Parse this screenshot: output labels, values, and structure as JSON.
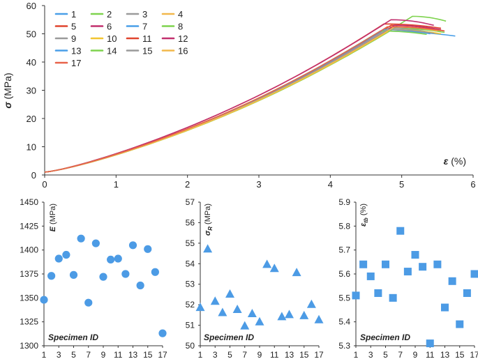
{
  "chart_data": [
    {
      "type": "line",
      "ylabel_symbol": "σ",
      "ylabel_unit": " (MPa)",
      "xlabel_symbol": "ε",
      "xlabel_unit": " (%)",
      "xlim": [
        0,
        6
      ],
      "ylim": [
        0,
        60
      ],
      "xticks": [
        "0",
        "1",
        "2",
        "3",
        "4",
        "5",
        "6"
      ],
      "yticks": [
        "0",
        "10",
        "20",
        "30",
        "40",
        "50",
        "60"
      ],
      "series": [
        {
          "name": "1",
          "color": "#4a9fe8",
          "x_peak": 4.7,
          "peak": 51.0,
          "x_end": 5.75,
          "end": 49.2
        },
        {
          "name": "2",
          "color": "#7ed34e",
          "x_peak": 5.15,
          "peak": 56.2,
          "x_end": 5.62,
          "end": 54.5
        },
        {
          "name": "3",
          "color": "#9a9a9a",
          "x_peak": 4.75,
          "peak": 51.5,
          "x_end": 5.3,
          "end": 50.4
        },
        {
          "name": "4",
          "color": "#f2b84b",
          "x_peak": 4.8,
          "peak": 52.5,
          "x_end": 5.55,
          "end": 51.0
        },
        {
          "name": "5",
          "color": "#e0452e",
          "x_peak": 4.75,
          "peak": 53.5,
          "x_end": 5.55,
          "end": 52.0
        },
        {
          "name": "6",
          "color": "#c2306e",
          "x_peak": 4.85,
          "peak": 55.0,
          "x_end": 5.45,
          "end": 53.0
        },
        {
          "name": "7",
          "color": "#4a9fe8",
          "x_peak": 4.85,
          "peak": 52.0,
          "x_end": 5.4,
          "end": 50.5
        },
        {
          "name": "8",
          "color": "#7ed34e",
          "x_peak": 4.9,
          "peak": 52.0,
          "x_end": 5.6,
          "end": 50.5
        },
        {
          "name": "9",
          "color": "#9a9a9a",
          "x_peak": 4.8,
          "peak": 52.0,
          "x_end": 5.5,
          "end": 50.0
        },
        {
          "name": "10",
          "color": "#f2c531",
          "x_peak": 4.85,
          "peak": 51.5,
          "x_end": 5.55,
          "end": 50.0
        },
        {
          "name": "11",
          "color": "#e0452e",
          "x_peak": 4.85,
          "peak": 53.0,
          "x_end": 5.6,
          "end": 51.0
        },
        {
          "name": "12",
          "color": "#c2306e",
          "x_peak": 4.9,
          "peak": 53.0,
          "x_end": 5.55,
          "end": 51.5
        },
        {
          "name": "13",
          "color": "#4a9fe8",
          "x_peak": 4.75,
          "peak": 51.5,
          "x_end": 5.4,
          "end": 50.0
        },
        {
          "name": "14",
          "color": "#7ed34e",
          "x_peak": 4.7,
          "peak": 51.0,
          "x_end": 5.35,
          "end": 49.8
        },
        {
          "name": "15",
          "color": "#9a9a9a",
          "x_peak": 4.8,
          "peak": 51.5,
          "x_end": 5.45,
          "end": 50.2
        },
        {
          "name": "16",
          "color": "#f2b84b",
          "x_peak": 4.9,
          "peak": 52.5,
          "x_end": 5.5,
          "end": 51.0
        },
        {
          "name": "17",
          "color": "#e8634a",
          "x_peak": 4.8,
          "peak": 52.5,
          "x_end": 5.55,
          "end": 51.2
        }
      ]
    },
    {
      "type": "scatter",
      "marker": "circle",
      "ylabel_symbol": "E",
      "ylabel_unit": " (MPa)",
      "xlabel": "Specimen ID",
      "ylim": [
        1300,
        1450
      ],
      "yticks": [
        "1300",
        "1325",
        "1350",
        "1375",
        "1400",
        "1425",
        "1450"
      ],
      "xticks": [
        "1",
        "3",
        "5",
        "7",
        "9",
        "11",
        "13",
        "15",
        "17"
      ],
      "x": [
        1,
        2,
        3,
        4,
        5,
        6,
        7,
        8,
        9,
        10,
        11,
        12,
        13,
        14,
        15,
        16,
        17
      ],
      "values": [
        1348,
        1373,
        1391,
        1395,
        1374,
        1412,
        1345,
        1407,
        1372,
        1390,
        1391,
        1375,
        1405,
        1363,
        1401,
        1377,
        1313
      ]
    },
    {
      "type": "scatter",
      "marker": "triangle",
      "ylabel_symbol": "σ",
      "ylabel_sub": "R",
      "ylabel_unit": " (MPa)",
      "xlabel": "Specimen ID",
      "ylim": [
        50,
        57
      ],
      "yticks": [
        "50",
        "51",
        "52",
        "53",
        "54",
        "55",
        "56",
        "57"
      ],
      "xticks": [
        "1",
        "3",
        "5",
        "7",
        "9",
        "11",
        "13",
        "15",
        "17"
      ],
      "x": [
        1,
        2,
        3,
        4,
        5,
        6,
        7,
        8,
        9,
        10,
        11,
        12,
        13,
        14,
        15,
        16,
        17
      ],
      "values": [
        51.85,
        54.7,
        52.15,
        51.6,
        52.5,
        51.75,
        50.95,
        51.55,
        51.15,
        53.95,
        53.75,
        51.4,
        51.5,
        53.55,
        51.45,
        52.0,
        51.25
      ]
    },
    {
      "type": "scatter",
      "marker": "square",
      "ylabel_symbol": "ε",
      "ylabel_sub": "tb",
      "ylabel_unit": " (%)",
      "xlabel": "Specimen ID",
      "ylim": [
        5.3,
        5.9
      ],
      "yticks": [
        "5.3",
        "5.4",
        "5.5",
        "5.6",
        "5.7",
        "5.8",
        "5.9"
      ],
      "xticks": [
        "1",
        "3",
        "5",
        "7",
        "9",
        "11",
        "13",
        "15",
        "17"
      ],
      "x": [
        1,
        2,
        3,
        4,
        5,
        6,
        7,
        8,
        9,
        10,
        11,
        12,
        13,
        14,
        15,
        16,
        17
      ],
      "values": [
        5.51,
        5.64,
        5.59,
        5.52,
        5.64,
        5.5,
        5.78,
        5.61,
        5.68,
        5.63,
        5.31,
        5.64,
        5.46,
        5.57,
        5.39,
        5.52,
        5.6
      ]
    }
  ]
}
